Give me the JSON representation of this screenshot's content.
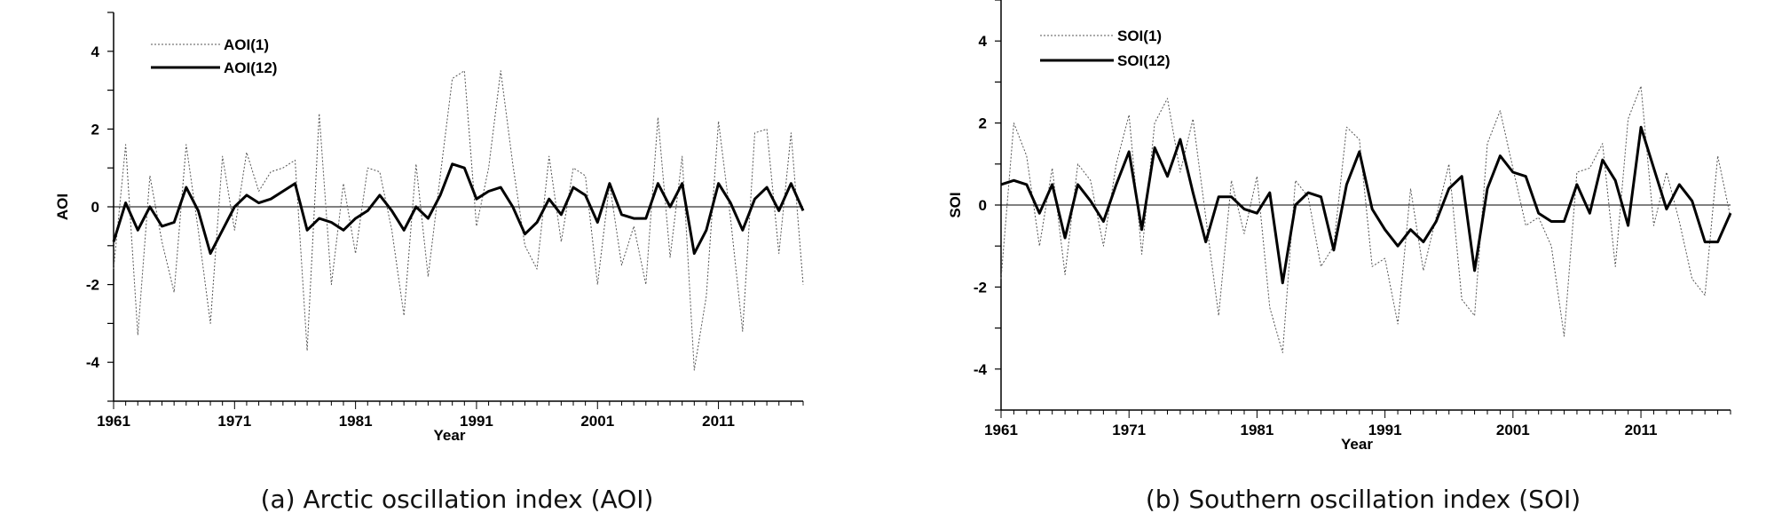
{
  "chart_data": [
    {
      "type": "line",
      "id": "aoi",
      "caption": "(a) Arctic oscillation index (AOI)",
      "xlabel": "Year",
      "ylabel": "AOI",
      "xlim": [
        1961,
        2018
      ],
      "ylim": [
        -5,
        5
      ],
      "yticks": [
        "4",
        "2",
        "0",
        "-2",
        "-4"
      ],
      "xticks": [
        "1961",
        "1971",
        "1981",
        "1991",
        "2001",
        "2011"
      ],
      "legend_position": "top-left",
      "series": [
        {
          "name": "AOI(1)",
          "style": "dotted-thin",
          "x": [
            1961,
            1962,
            1963,
            1964,
            1965,
            1966,
            1967,
            1968,
            1969,
            1970,
            1971,
            1972,
            1973,
            1974,
            1975,
            1976,
            1977,
            1978,
            1979,
            1980,
            1981,
            1982,
            1983,
            1984,
            1985,
            1986,
            1987,
            1988,
            1989,
            1990,
            1991,
            1992,
            1993,
            1994,
            1995,
            1996,
            1997,
            1998,
            1999,
            2000,
            2001,
            2002,
            2003,
            2004,
            2005,
            2006,
            2007,
            2008,
            2009,
            2010,
            2011,
            2012,
            2013,
            2014,
            2015,
            2016,
            2017,
            2018
          ],
          "y": [
            -1.6,
            1.6,
            -3.3,
            0.8,
            -0.9,
            -2.2,
            1.6,
            -0.6,
            -3.0,
            1.3,
            -0.6,
            1.4,
            0.4,
            0.9,
            1.0,
            1.2,
            -3.7,
            2.4,
            -2.0,
            0.6,
            -1.2,
            1.0,
            0.9,
            -0.6,
            -2.8,
            1.1,
            -1.8,
            0.8,
            3.3,
            3.5,
            -0.5,
            1.0,
            3.5,
            1.1,
            -1.0,
            -1.6,
            1.3,
            -0.9,
            1.0,
            0.8,
            -2.0,
            0.6,
            -1.5,
            -0.5,
            -2.0,
            2.3,
            -1.3,
            1.3,
            -4.2,
            -2.3,
            2.2,
            -0.3,
            -3.2,
            1.9,
            2.0,
            -1.2,
            1.9,
            -2.0
          ]
        },
        {
          "name": "AOI(12)",
          "style": "solid-thick",
          "x": [
            1961,
            1962,
            1963,
            1964,
            1965,
            1966,
            1967,
            1968,
            1969,
            1970,
            1971,
            1972,
            1973,
            1974,
            1975,
            1976,
            1977,
            1978,
            1979,
            1980,
            1981,
            1982,
            1983,
            1984,
            1985,
            1986,
            1987,
            1988,
            1989,
            1990,
            1991,
            1992,
            1993,
            1994,
            1995,
            1996,
            1997,
            1998,
            1999,
            2000,
            2001,
            2002,
            2003,
            2004,
            2005,
            2006,
            2007,
            2008,
            2009,
            2010,
            2011,
            2012,
            2013,
            2014,
            2015,
            2016,
            2017,
            2018
          ],
          "y": [
            -0.9,
            0.1,
            -0.6,
            0.0,
            -0.5,
            -0.4,
            0.5,
            -0.1,
            -1.2,
            -0.6,
            0.0,
            0.3,
            0.1,
            0.2,
            0.4,
            0.6,
            -0.6,
            -0.3,
            -0.4,
            -0.6,
            -0.3,
            -0.1,
            0.3,
            -0.1,
            -0.6,
            0.0,
            -0.3,
            0.3,
            1.1,
            1.0,
            0.2,
            0.4,
            0.5,
            0.0,
            -0.7,
            -0.4,
            0.2,
            -0.2,
            0.5,
            0.3,
            -0.4,
            0.6,
            -0.2,
            -0.3,
            -0.3,
            0.6,
            0.0,
            0.6,
            -1.2,
            -0.6,
            0.6,
            0.1,
            -0.6,
            0.2,
            0.5,
            -0.1,
            0.6,
            -0.1
          ]
        }
      ]
    },
    {
      "type": "line",
      "id": "soi",
      "caption": "(b) Southern oscillation index (SOI)",
      "xlabel": "Year",
      "ylabel": "SOI",
      "xlim": [
        1961,
        2018
      ],
      "ylim": [
        -5,
        5
      ],
      "yticks": [
        "4",
        "2",
        "0",
        "-2",
        "-4"
      ],
      "xticks": [
        "1961",
        "1971",
        "1981",
        "1991",
        "2001",
        "2011"
      ],
      "legend_position": "top-left",
      "series": [
        {
          "name": "SOI(1)",
          "style": "dotted-thin",
          "x": [
            1961,
            1962,
            1963,
            1964,
            1965,
            1966,
            1967,
            1968,
            1969,
            1970,
            1971,
            1972,
            1973,
            1974,
            1975,
            1976,
            1977,
            1978,
            1979,
            1980,
            1981,
            1982,
            1983,
            1984,
            1985,
            1986,
            1987,
            1988,
            1989,
            1990,
            1991,
            1992,
            1993,
            1994,
            1995,
            1996,
            1997,
            1998,
            1999,
            2000,
            2001,
            2002,
            2003,
            2004,
            2005,
            2006,
            2007,
            2008,
            2009,
            2010,
            2011,
            2012,
            2013,
            2014,
            2015,
            2016,
            2017,
            2018
          ],
          "y": [
            -1.8,
            2.0,
            1.2,
            -1.0,
            0.9,
            -1.7,
            1.0,
            0.6,
            -1.0,
            1.0,
            2.2,
            -1.2,
            2.0,
            2.6,
            0.8,
            2.1,
            -0.3,
            -2.7,
            0.6,
            -0.7,
            0.7,
            -2.5,
            -3.6,
            0.6,
            0.2,
            -1.5,
            -1.0,
            1.9,
            1.6,
            -1.5,
            -1.3,
            -2.9,
            0.4,
            -1.6,
            -0.3,
            1.0,
            -2.3,
            -2.7,
            1.5,
            2.3,
            0.9,
            -0.5,
            -0.3,
            -1.0,
            -3.2,
            0.8,
            0.9,
            1.5,
            -1.5,
            2.1,
            2.9,
            -0.5,
            0.8,
            -0.4,
            -1.8,
            -2.2,
            1.2,
            -0.3
          ]
        },
        {
          "name": "SOI(12)",
          "style": "solid-thick",
          "x": [
            1961,
            1962,
            1963,
            1964,
            1965,
            1966,
            1967,
            1968,
            1969,
            1970,
            1971,
            1972,
            1973,
            1974,
            1975,
            1976,
            1977,
            1978,
            1979,
            1980,
            1981,
            1982,
            1983,
            1984,
            1985,
            1986,
            1987,
            1988,
            1989,
            1990,
            1991,
            1992,
            1993,
            1994,
            1995,
            1996,
            1997,
            1998,
            1999,
            2000,
            2001,
            2002,
            2003,
            2004,
            2005,
            2006,
            2007,
            2008,
            2009,
            2010,
            2011,
            2012,
            2013,
            2014,
            2015,
            2016,
            2017,
            2018
          ],
          "y": [
            0.5,
            0.6,
            0.5,
            -0.2,
            0.5,
            -0.8,
            0.5,
            0.1,
            -0.4,
            0.5,
            1.3,
            -0.6,
            1.4,
            0.7,
            1.6,
            0.3,
            -0.9,
            0.2,
            0.2,
            -0.1,
            -0.2,
            0.3,
            -1.9,
            0.0,
            0.3,
            0.2,
            -1.1,
            0.5,
            1.3,
            -0.1,
            -0.6,
            -1.0,
            -0.6,
            -0.9,
            -0.4,
            0.4,
            0.7,
            -1.6,
            0.4,
            1.2,
            0.8,
            0.7,
            -0.2,
            -0.4,
            -0.4,
            0.5,
            -0.2,
            1.1,
            0.6,
            -0.5,
            1.9,
            0.9,
            -0.1,
            0.5,
            0.1,
            -0.9,
            -0.9,
            -0.2
          ]
        }
      ]
    }
  ]
}
